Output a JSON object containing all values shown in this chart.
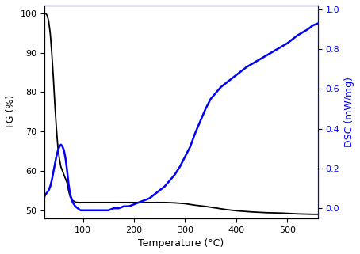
{
  "title": "",
  "xlabel": "Temperature (°C)",
  "ylabel_left": "TG (%)",
  "ylabel_right": "DSC (mW/mg)",
  "tg_color": "#000000",
  "dsc_color": "#0000ff",
  "xlim": [
    25,
    560
  ],
  "ylim_left": [
    48,
    102
  ],
  "ylim_right": [
    -0.05,
    1.02
  ],
  "xticks": [
    100,
    200,
    300,
    400,
    500
  ],
  "yticks_left": [
    50,
    60,
    70,
    80,
    90,
    100
  ],
  "yticks_right": [
    0.0,
    0.2,
    0.4,
    0.6,
    0.8,
    1.0
  ],
  "figsize": [
    4.54,
    3.21
  ],
  "dpi": 100,
  "tg_data": {
    "x": [
      25,
      27,
      30,
      33,
      36,
      39,
      42,
      45,
      48,
      51,
      54,
      57,
      60,
      63,
      66,
      69,
      72,
      75,
      80,
      85,
      90,
      95,
      100,
      110,
      120,
      130,
      140,
      150,
      160,
      170,
      180,
      190,
      200,
      220,
      240,
      260,
      280,
      300,
      320,
      340,
      360,
      380,
      400,
      430,
      460,
      490,
      520,
      550,
      560
    ],
    "y": [
      100,
      100,
      99.5,
      98,
      95,
      90,
      84,
      77,
      71,
      66,
      63,
      61,
      60,
      59,
      58,
      57,
      55,
      53.5,
      52.5,
      52.1,
      52.0,
      52.0,
      52.0,
      52.0,
      52.0,
      52.0,
      52.0,
      52.0,
      52.0,
      52.0,
      52.0,
      52.0,
      52.0,
      52.0,
      52.0,
      52.0,
      51.9,
      51.7,
      51.3,
      51.0,
      50.6,
      50.2,
      49.9,
      49.6,
      49.4,
      49.3,
      49.1,
      49.0,
      49.0
    ]
  },
  "dsc_data": {
    "x": [
      25,
      27,
      30,
      33,
      36,
      39,
      42,
      45,
      48,
      51,
      54,
      57,
      60,
      63,
      66,
      69,
      72,
      75,
      80,
      85,
      90,
      95,
      100,
      110,
      120,
      130,
      140,
      150,
      160,
      170,
      180,
      190,
      200,
      210,
      220,
      230,
      240,
      250,
      260,
      270,
      280,
      290,
      300,
      310,
      320,
      330,
      340,
      350,
      360,
      370,
      380,
      390,
      400,
      420,
      440,
      460,
      480,
      500,
      520,
      540,
      550,
      560
    ],
    "y": [
      0.06,
      0.07,
      0.08,
      0.09,
      0.11,
      0.14,
      0.18,
      0.22,
      0.26,
      0.29,
      0.31,
      0.32,
      0.31,
      0.29,
      0.25,
      0.19,
      0.12,
      0.07,
      0.03,
      0.01,
      0.0,
      -0.01,
      -0.01,
      -0.01,
      -0.01,
      -0.01,
      -0.01,
      -0.01,
      -0.0,
      0.0,
      0.01,
      0.01,
      0.02,
      0.03,
      0.04,
      0.05,
      0.07,
      0.09,
      0.11,
      0.14,
      0.17,
      0.21,
      0.26,
      0.31,
      0.38,
      0.44,
      0.5,
      0.55,
      0.58,
      0.61,
      0.63,
      0.65,
      0.67,
      0.71,
      0.74,
      0.77,
      0.8,
      0.83,
      0.87,
      0.9,
      0.92,
      0.93
    ]
  }
}
